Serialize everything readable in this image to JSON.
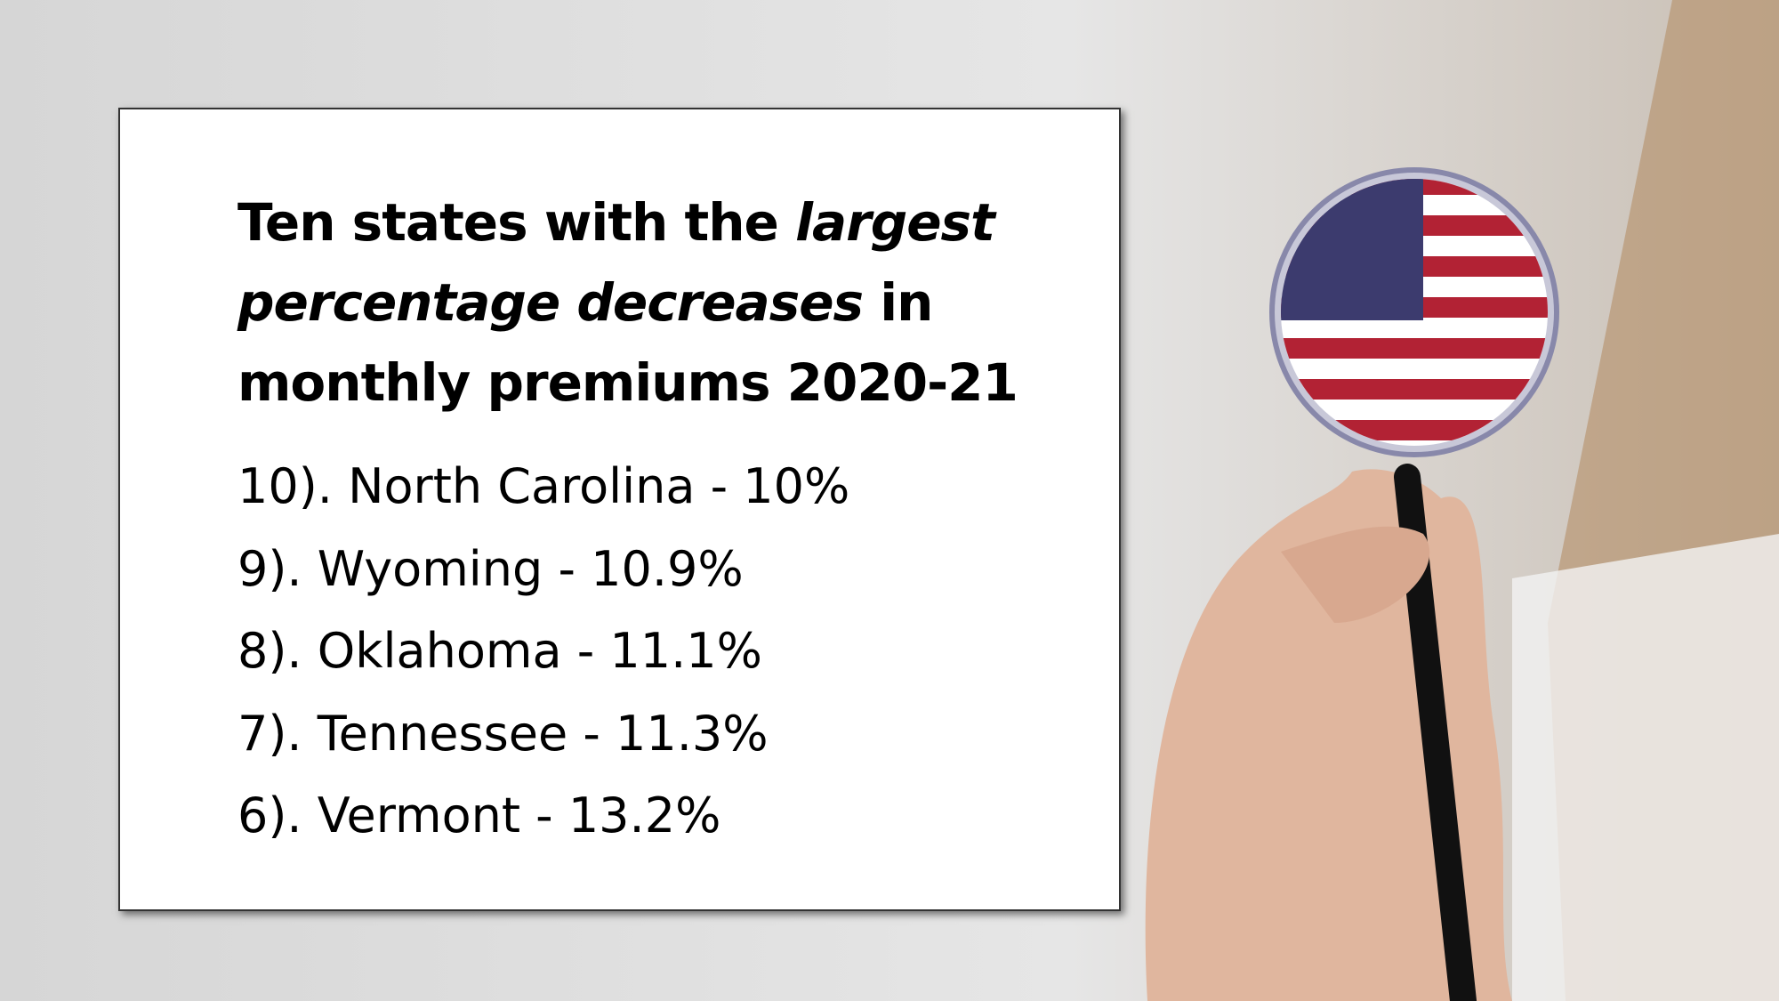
{
  "title": {
    "segments": [
      "Ten states with the",
      "largest",
      "percentage decreases",
      "in",
      "monthly premiums 2020-21"
    ]
  },
  "list": {
    "items": [
      "10). North Carolina - 10%",
      "9). Wyoming - 10.9%",
      "8). Oklahoma - 11.1%",
      "7). Tennessee - 11.3%",
      "6). Vermont - 13.2%"
    ]
  }
}
